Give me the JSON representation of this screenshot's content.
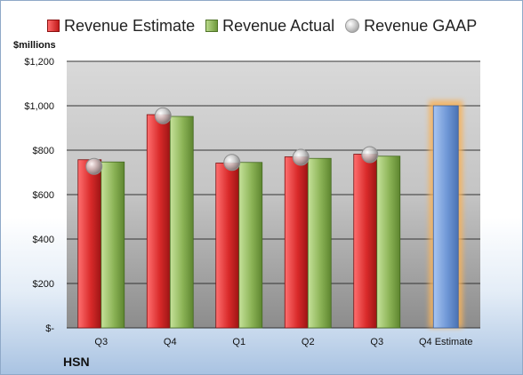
{
  "legend": {
    "estimate_label": "Revenue Estimate",
    "actual_label": "Revenue Actual",
    "gaap_label": "Revenue GAAP"
  },
  "units_label": "$millions",
  "brand_label": "HSN",
  "colors": {
    "estimate": "#d92a2a",
    "actual": "#8bb356",
    "gaap_marker": "#b5b5b5",
    "projection": "#6f97d6",
    "projection_glow": "#f7b25a",
    "plot_bg_top": "#d9d9d9",
    "plot_bg_bottom": "#8c8c8c"
  },
  "chart_data": {
    "type": "bar",
    "categories": [
      "Q3",
      "Q4",
      "Q1",
      "Q2",
      "Q3",
      "Q4 Estimate"
    ],
    "y_tick_labels": [
      "$-",
      "$200",
      "$400",
      "$600",
      "$800",
      "$1,000",
      "$1,200"
    ],
    "ylim": [
      0,
      1200
    ],
    "y_tick_step": 200,
    "grid": true,
    "legend_position": "top",
    "series": [
      {
        "name": "Revenue Estimate",
        "values": [
          757,
          960,
          742,
          770,
          782,
          null
        ]
      },
      {
        "name": "Revenue Actual",
        "values": [
          747,
          952,
          745,
          763,
          773,
          null
        ]
      },
      {
        "name": "Revenue GAAP",
        "marker": "sphere",
        "values": [
          727,
          955,
          745,
          768,
          780,
          null
        ]
      }
    ],
    "projection": {
      "category": "Q4 Estimate",
      "value": 1000
    }
  }
}
